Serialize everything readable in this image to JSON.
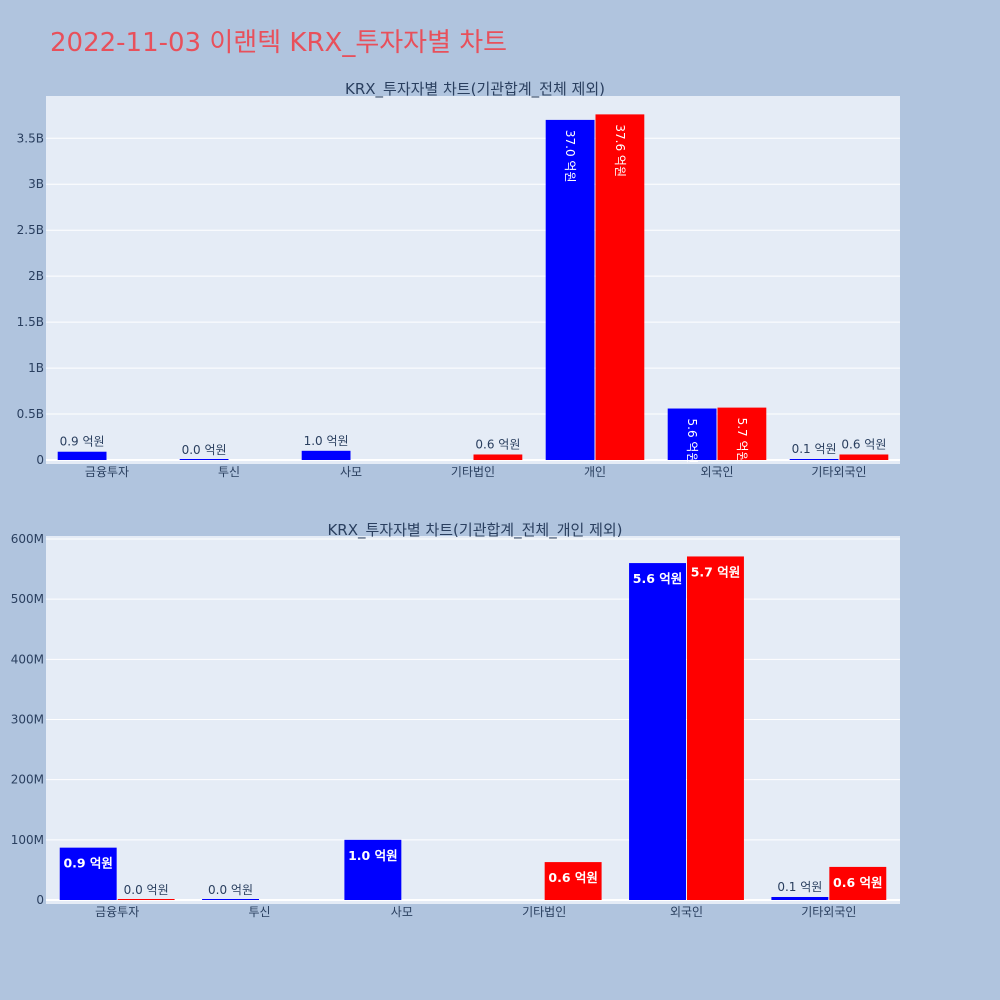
{
  "page_title": "2022-11-03 이랜텍 KRX_투자자별 차트",
  "colors": {
    "buy": "#0000ff",
    "sell": "#ff0000",
    "plot_bg": "#e5ecf6",
    "page_bg": "#b0c4de",
    "title": "#e8505b"
  },
  "chart_data": [
    {
      "type": "bar",
      "title": "KRX_투자자별 차트(기관합계_전체 제외)",
      "categories": [
        "금융투자",
        "투신",
        "사모",
        "기타법인",
        "개인",
        "외국인",
        "기타외국인"
      ],
      "series": [
        {
          "color": "blue",
          "values": [
            90000000,
            0,
            100000000,
            null,
            3700000000,
            560000000,
            10000000
          ],
          "labels": [
            "0.9 억원",
            "0.0 억원",
            "1.0 억원",
            "",
            "37.0 억원",
            "5.6 억원",
            "0.1 억원"
          ]
        },
        {
          "color": "red",
          "values": [
            null,
            null,
            null,
            60000000,
            3760000000,
            570000000,
            60000000
          ],
          "labels": [
            "",
            "",
            "",
            "0.6 억원",
            "37.6 억원",
            "5.7 억원",
            "0.6 억원"
          ]
        }
      ],
      "yticks": [
        "0",
        "0.5B",
        "1B",
        "1.5B",
        "2B",
        "2.5B",
        "3B",
        "3.5B"
      ],
      "ytick_values": [
        0,
        500000000,
        1000000000,
        1500000000,
        2000000000,
        2500000000,
        3000000000,
        3500000000
      ],
      "ylim": [
        0,
        3960000000
      ],
      "grid": true
    },
    {
      "type": "bar",
      "title": "KRX_투자자별 차트(기관합계_전체_개인 제외)",
      "categories": [
        "금융투자",
        "투신",
        "사모",
        "기타법인",
        "외국인",
        "기타외국인"
      ],
      "series": [
        {
          "color": "blue",
          "values": [
            87000000,
            0,
            100000000,
            null,
            560000000,
            5000000
          ],
          "labels": [
            "0.9 억원",
            "0.0 억원",
            "1.0 억원",
            "",
            "5.6 억원",
            "0.1 억원"
          ]
        },
        {
          "color": "red",
          "values": [
            0,
            null,
            null,
            63000000,
            571000000,
            55000000
          ],
          "labels": [
            "0.0 억원",
            "",
            "",
            "0.6 억원",
            "5.7 억원",
            "0.6 억원"
          ]
        }
      ],
      "yticks": [
        "0",
        "100M",
        "200M",
        "300M",
        "400M",
        "500M",
        "600M"
      ],
      "ytick_values": [
        0,
        100000000,
        200000000,
        300000000,
        400000000,
        500000000,
        600000000
      ],
      "ylim": [
        0,
        605000000
      ],
      "grid": true
    }
  ]
}
